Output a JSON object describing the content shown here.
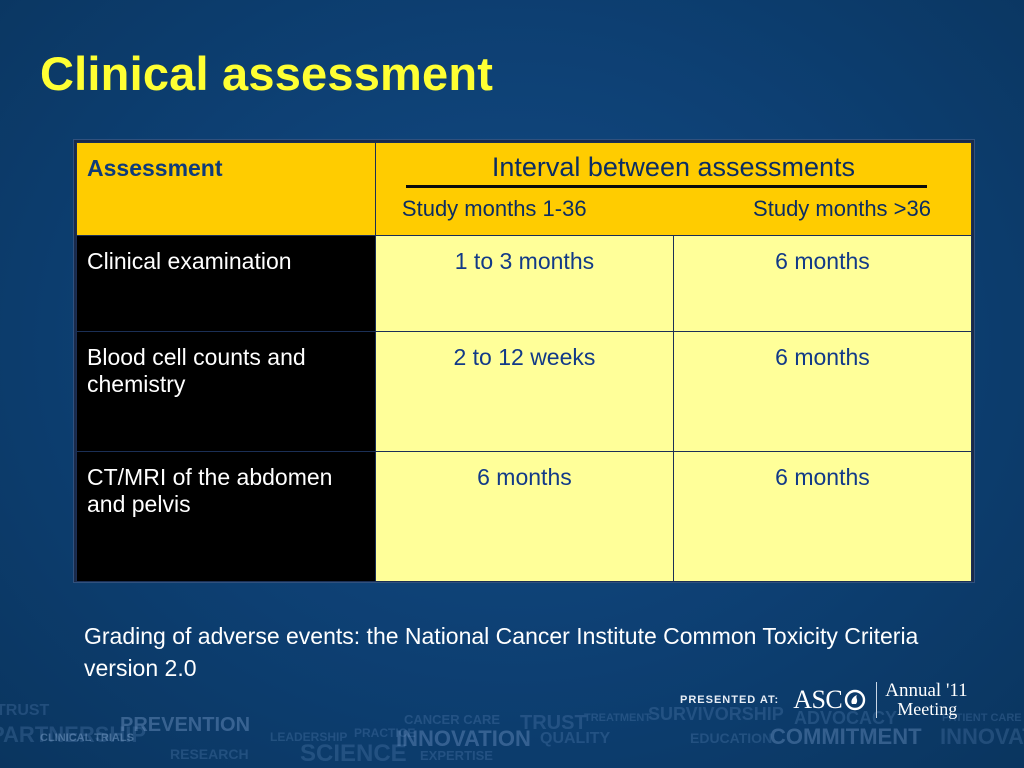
{
  "slide": {
    "title": "Clinical assessment",
    "footnote": "Grading of adverse events: the National Cancer Institute Common Toxicity Criteria version 2.0"
  },
  "table": {
    "header_assessment": "Assessment",
    "header_interval": "Interval between assessments",
    "subheader_1": "Study months 1-36",
    "subheader_2": "Study months >36",
    "rows": [
      {
        "label": "Clinical examination",
        "col1": "1 to 3 months",
        "col2": "6 months"
      },
      {
        "label": "Blood cell counts and chemistry",
        "col1": "2 to 12 weeks",
        "col2": "6 months"
      },
      {
        "label": "CT/MRI of the abdomen and pelvis",
        "col1": "6 months",
        "col2": "6 months"
      }
    ]
  },
  "branding": {
    "presented_at": "PRESENTED AT:",
    "asco": "ASC",
    "meeting_line1": "Annual '11",
    "meeting_line2": "Meeting",
    "watermark_words": [
      "TRUST",
      "PARTNERSHIP",
      "PREVENTION",
      "CANCER CARE",
      "TRUST",
      "TREATMENT",
      "SURVIVORSHIP",
      "ADVOCACY",
      "PATIENT CARE",
      "PRACTICE",
      "INNOVATION",
      "QUALITY",
      "EDUCATION",
      "COMMITMENT",
      "INNOVATION",
      "SCIENCE",
      "EXPERTISE",
      "LEADERSHIP",
      "CLINICAL TRIALS",
      "RESEARCH"
    ]
  },
  "colors": {
    "background": "#0d3f72",
    "title": "#ffff33",
    "header_fill": "#ffcc00",
    "cell_fill": "#ffff99",
    "label_fill": "#000000"
  }
}
